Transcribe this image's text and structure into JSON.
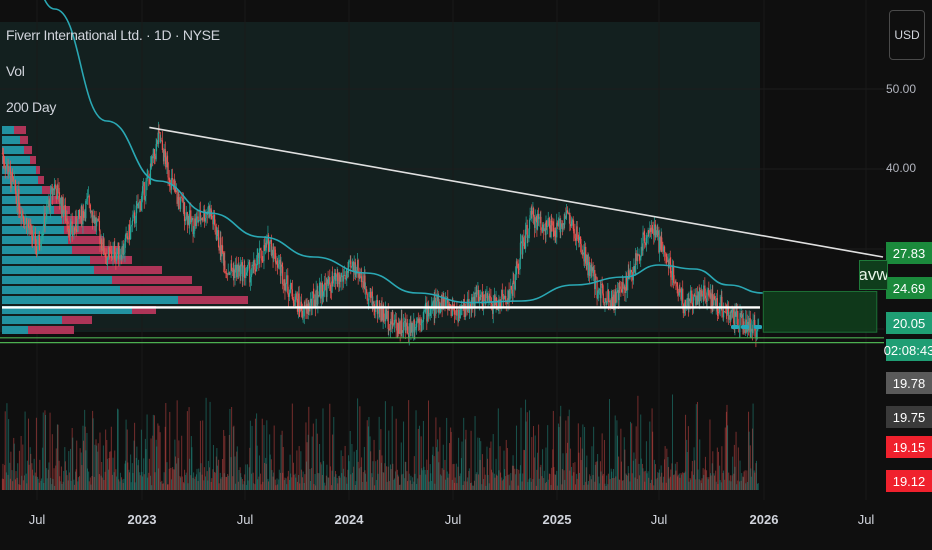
{
  "header": {
    "symbol_title": "Fiverr International Ltd. · 1D · NYSE",
    "volume_label": "Vol",
    "ma_label": "200 Day"
  },
  "currency_button": "USD",
  "price_axis": {
    "ticks": [
      {
        "label": "50.00",
        "value": 50
      },
      {
        "label": "40.00",
        "value": 40
      }
    ],
    "tags": [
      {
        "label": "27.83",
        "value": 27.83,
        "color": "#1b8a3c"
      },
      {
        "label": "24.69",
        "value": 24.69,
        "color": "#1b8a3c"
      },
      {
        "label": "20.05",
        "value": 20.05,
        "color": "#1f9e74"
      },
      {
        "label": "02:08:43",
        "color": "#1f9e74"
      },
      {
        "label": "19.78",
        "color": "#5a5a5a"
      },
      {
        "label": "19.75",
        "color": "#3a3a3a"
      },
      {
        "label": "19.15",
        "color": "#f0212d"
      },
      {
        "label": "19.12",
        "color": "#f0212d"
      }
    ]
  },
  "overlay_label": "avw",
  "time_axis": [
    {
      "label": "Jul",
      "year": false
    },
    {
      "label": "2023",
      "year": true
    },
    {
      "label": "Jul",
      "year": false
    },
    {
      "label": "2024",
      "year": true
    },
    {
      "label": "Jul",
      "year": false
    },
    {
      "label": "2025",
      "year": true
    },
    {
      "label": "Jul",
      "year": false
    },
    {
      "label": "2026",
      "year": true
    },
    {
      "label": "Jul",
      "year": false
    }
  ],
  "colors": {
    "up": "#26a69a",
    "down": "#ef5350",
    "ma": "#2aa8b4",
    "trendline": "#e0e0e0",
    "support": "#ffffff",
    "vp_up": "#26a7b8",
    "vp_down": "#c93a63",
    "green_line": "#4caf50"
  },
  "chart_data": {
    "type": "candlestick",
    "x_range": [
      "2022-05-01",
      "2026-07-31"
    ],
    "y_range": [
      17.5,
      54
    ],
    "close_series": [
      {
        "x": "2022-05-01",
        "y": 42.0
      },
      {
        "x": "2022-06-01",
        "y": 35.5
      },
      {
        "x": "2022-07-01",
        "y": 30.0
      },
      {
        "x": "2022-08-01",
        "y": 38.0
      },
      {
        "x": "2022-09-01",
        "y": 32.0
      },
      {
        "x": "2022-10-01",
        "y": 36.0
      },
      {
        "x": "2022-11-01",
        "y": 29.0
      },
      {
        "x": "2022-12-01",
        "y": 30.0
      },
      {
        "x": "2023-01-15",
        "y": 39.0
      },
      {
        "x": "2023-02-01",
        "y": 44.0
      },
      {
        "x": "2023-03-01",
        "y": 37.0
      },
      {
        "x": "2023-04-01",
        "y": 33.0
      },
      {
        "x": "2023-05-01",
        "y": 35.0
      },
      {
        "x": "2023-06-01",
        "y": 27.5
      },
      {
        "x": "2023-07-15",
        "y": 27.0
      },
      {
        "x": "2023-08-15",
        "y": 31.0
      },
      {
        "x": "2023-09-15",
        "y": 25.5
      },
      {
        "x": "2023-10-15",
        "y": 22.0
      },
      {
        "x": "2023-11-15",
        "y": 25.0
      },
      {
        "x": "2023-12-15",
        "y": 26.0
      },
      {
        "x": "2024-01-15",
        "y": 28.0
      },
      {
        "x": "2024-02-15",
        "y": 23.0
      },
      {
        "x": "2024-03-15",
        "y": 21.0
      },
      {
        "x": "2024-04-15",
        "y": 20.0
      },
      {
        "x": "2024-05-15",
        "y": 22.0
      },
      {
        "x": "2024-06-15",
        "y": 23.5
      },
      {
        "x": "2024-07-15",
        "y": 22.0
      },
      {
        "x": "2024-08-15",
        "y": 24.0
      },
      {
        "x": "2024-09-15",
        "y": 23.0
      },
      {
        "x": "2024-10-15",
        "y": 24.5
      },
      {
        "x": "2024-11-01",
        "y": 30.0
      },
      {
        "x": "2024-11-20",
        "y": 34.0
      },
      {
        "x": "2025-01-01",
        "y": 32.0
      },
      {
        "x": "2025-01-20",
        "y": 34.5
      },
      {
        "x": "2025-02-15",
        "y": 30.0
      },
      {
        "x": "2025-03-15",
        "y": 25.0
      },
      {
        "x": "2025-04-15",
        "y": 23.5
      },
      {
        "x": "2025-05-15",
        "y": 27.0
      },
      {
        "x": "2025-06-15",
        "y": 33.0
      },
      {
        "x": "2025-07-15",
        "y": 29.0
      },
      {
        "x": "2025-08-15",
        "y": 23.0
      },
      {
        "x": "2025-09-15",
        "y": 24.5
      },
      {
        "x": "2025-10-15",
        "y": 23.0
      },
      {
        "x": "2025-11-15",
        "y": 21.0
      },
      {
        "x": "2025-12-15",
        "y": 20.05
      }
    ],
    "ma_200": [
      {
        "x": "2022-05-01",
        "y": 80
      },
      {
        "x": "2022-08-01",
        "y": 60
      },
      {
        "x": "2022-11-01",
        "y": 46
      },
      {
        "x": "2023-02-01",
        "y": 38.5
      },
      {
        "x": "2023-05-01",
        "y": 34.5
      },
      {
        "x": "2023-08-01",
        "y": 31.5
      },
      {
        "x": "2023-11-01",
        "y": 29.0
      },
      {
        "x": "2024-02-01",
        "y": 27.0
      },
      {
        "x": "2024-05-01",
        "y": 24.5
      },
      {
        "x": "2024-08-01",
        "y": 23.3
      },
      {
        "x": "2024-11-01",
        "y": 23.5
      },
      {
        "x": "2025-02-01",
        "y": 25.5
      },
      {
        "x": "2025-05-01",
        "y": 26.5
      },
      {
        "x": "2025-07-01",
        "y": 28.0
      },
      {
        "x": "2025-09-01",
        "y": 27.5
      },
      {
        "x": "2025-11-01",
        "y": 25.5
      },
      {
        "x": "2025-12-31",
        "y": 24.5
      }
    ],
    "trendline": {
      "start": {
        "x": "2023-01-15",
        "y": 45.2
      },
      "end": {
        "x": "2026-07-31",
        "y": 29.0
      }
    },
    "support_level": 22.7,
    "lower_levels": [
      18.9,
      18.3
    ],
    "zone": {
      "x_start": "2026-01-01",
      "x_end": "2026-07-20",
      "y_top": 24.69,
      "y_bottom": 19.6
    }
  }
}
